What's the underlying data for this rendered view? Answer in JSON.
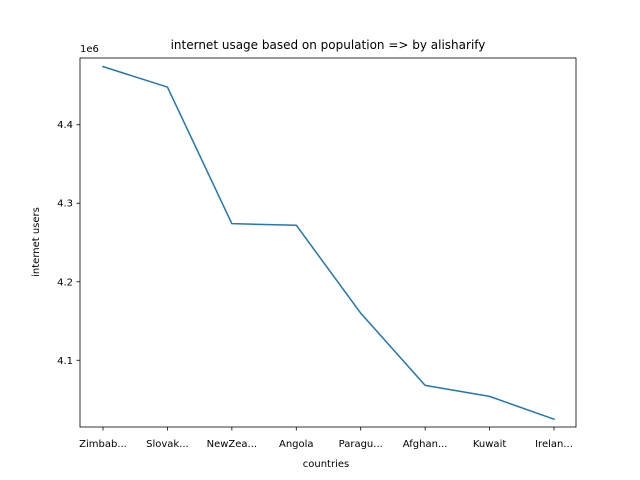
{
  "chart_data": {
    "type": "line",
    "title": "internet usage based on population => by alisharify",
    "xlabel": "countries",
    "ylabel": "internet users",
    "y_offset_label": "1e6",
    "categories": [
      "Zimbab...",
      "Slovak...",
      "NewZea...",
      "Angola",
      "Paragu...",
      "Afghan...",
      "Kuwait",
      "Irelan..."
    ],
    "series": [
      {
        "values": [
          4474000,
          4448000,
          4274000,
          4272000,
          4160000,
          4068000,
          4054000,
          4025000
        ],
        "color": "#1f77b4"
      }
    ],
    "ylim": [
      4015000,
      4485000
    ],
    "yticks": [
      4100000,
      4200000,
      4300000,
      4400000
    ],
    "ytick_labels": [
      "4.1",
      "4.2",
      "4.3",
      "4.4"
    ],
    "grid": false
  }
}
